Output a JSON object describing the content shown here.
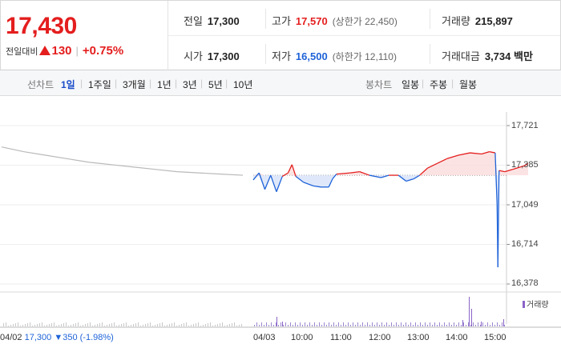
{
  "header": {
    "current_price": "17,430",
    "change_label": "전일대비",
    "change_value": "130",
    "change_pct": "+0.75%",
    "colors": {
      "up": "#e41e1e",
      "down": "#1f63d8"
    }
  },
  "stats": {
    "prev_close": {
      "label": "전일",
      "value": "17,300"
    },
    "open": {
      "label": "시가",
      "value": "17,300"
    },
    "high": {
      "label": "고가",
      "value": "17,570",
      "sub": "(상한가 22,450)"
    },
    "low": {
      "label": "저가",
      "value": "16,500",
      "sub": "(하한가 12,110)"
    },
    "volume": {
      "label": "거래량",
      "value": "215,897"
    },
    "amount": {
      "label": "거래대금",
      "value": "3,734 백만"
    }
  },
  "line_tabs": {
    "group_label": "선차트",
    "items": [
      "1일",
      "1주일",
      "3개월",
      "1년",
      "3년",
      "5년",
      "10년"
    ],
    "active": "1일"
  },
  "candle_tabs": {
    "group_label": "봉차트",
    "items": [
      "일봉",
      "주봉",
      "월봉"
    ]
  },
  "chart_data": {
    "type": "line",
    "prev_session": {
      "date": "04/02",
      "close": "17,300",
      "change": "350",
      "change_pct": "(-1.98%)"
    },
    "session_date": "04/03",
    "baseline": 17300,
    "ylim": [
      16378,
      17721
    ],
    "y_ticks": [
      "17,721",
      "17,385",
      "17,049",
      "16,714",
      "16,378"
    ],
    "x_ticks": [
      "10:00",
      "11:00",
      "12:00",
      "13:00",
      "14:00",
      "15:00"
    ],
    "volume_legend": "거래량",
    "prev_day_series": [
      [
        0,
        17540
      ],
      [
        1,
        17500
      ],
      [
        2,
        17470
      ],
      [
        3,
        17440
      ],
      [
        4,
        17410
      ],
      [
        5,
        17390
      ],
      [
        6,
        17370
      ],
      [
        7,
        17350
      ],
      [
        8,
        17330
      ],
      [
        9,
        17320
      ],
      [
        10,
        17310
      ],
      [
        11,
        17300
      ]
    ],
    "today_series": [
      [
        0,
        17260
      ],
      [
        0.15,
        17320
      ],
      [
        0.3,
        17180
      ],
      [
        0.45,
        17300
      ],
      [
        0.6,
        17160
      ],
      [
        0.75,
        17290
      ],
      [
        0.9,
        17320
      ],
      [
        1.0,
        17390
      ],
      [
        1.1,
        17290
      ],
      [
        1.3,
        17240
      ],
      [
        1.55,
        17210
      ],
      [
        1.75,
        17200
      ],
      [
        1.95,
        17200
      ],
      [
        2.05,
        17270
      ],
      [
        2.15,
        17310
      ],
      [
        2.5,
        17320
      ],
      [
        2.75,
        17330
      ],
      [
        3.0,
        17300
      ],
      [
        3.3,
        17280
      ],
      [
        3.5,
        17300
      ],
      [
        3.75,
        17300
      ],
      [
        3.95,
        17250
      ],
      [
        4.15,
        17270
      ],
      [
        4.3,
        17300
      ],
      [
        4.5,
        17360
      ],
      [
        4.75,
        17400
      ],
      [
        5.0,
        17440
      ],
      [
        5.3,
        17470
      ],
      [
        5.6,
        17490
      ],
      [
        5.9,
        17480
      ],
      [
        6.1,
        17500
      ],
      [
        6.25,
        17490
      ],
      [
        6.3,
        17050
      ],
      [
        6.32,
        16520
      ],
      [
        6.35,
        17340
      ],
      [
        6.5,
        17330
      ],
      [
        6.7,
        17350
      ],
      [
        6.9,
        17370
      ],
      [
        7.0,
        17380
      ],
      [
        7.1,
        17400
      ]
    ]
  }
}
